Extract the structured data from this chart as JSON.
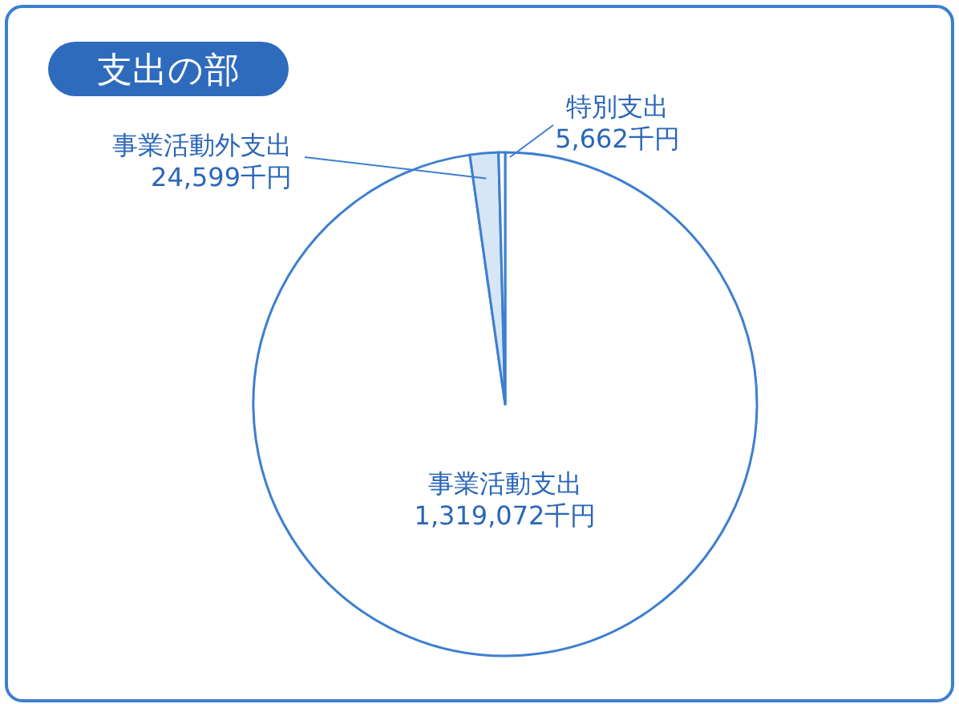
{
  "chart_data": {
    "type": "pie",
    "title": "支出の部",
    "categories": [
      "事業活動支出",
      "事業活動外支出",
      "特別支出"
    ],
    "values": [
      1319072,
      24599,
      5662
    ],
    "value_labels": [
      "1,319,072千円",
      "24,599千円",
      "5,662千円"
    ],
    "colors": [
      "#ffffff",
      "#d6e6f5",
      "#ffffff"
    ]
  }
}
